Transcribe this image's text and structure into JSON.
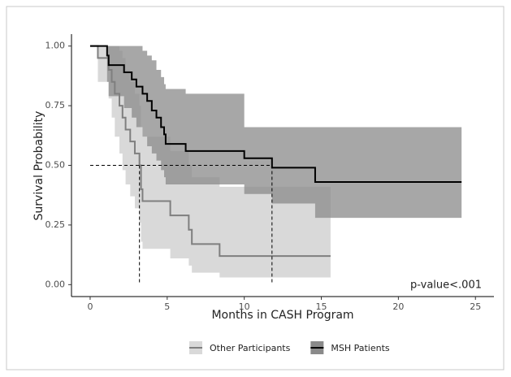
{
  "chart_data": {
    "type": "km",
    "x_label": "Months in CASH Program",
    "y_label": "Survival Probability",
    "annotation": "p-value<.001",
    "xlim": [
      -1.21,
      26.2
    ],
    "ylim": [
      -0.05,
      1.05
    ],
    "xticks": [
      0,
      5,
      10,
      15,
      20,
      25
    ],
    "yticks": [
      {
        "value": 0,
        "label": "0.00"
      },
      {
        "value": 0.25,
        "label": "0.25"
      },
      {
        "value": 0.5,
        "label": "0.50"
      },
      {
        "value": 0.75,
        "label": "0.75"
      },
      {
        "value": 1,
        "label": "1.00"
      }
    ],
    "median_lines": {
      "y": 0.5,
      "x": [
        3.2,
        11.8
      ]
    },
    "series": [
      {
        "name": "Other Participants",
        "color": "#7f7f7f",
        "band_color": "#d9d9d9",
        "times": [
          0,
          0.5,
          1.2,
          1.4,
          1.6,
          1.9,
          2.1,
          2.3,
          2.6,
          2.9,
          3.2,
          3.3,
          3.4,
          5.2,
          6.4,
          6.6,
          8.4
        ],
        "values": [
          1,
          0.95,
          0.9,
          0.85,
          0.8,
          0.75,
          0.7,
          0.65,
          0.6,
          0.55,
          0.5,
          0.4,
          0.35,
          0.29,
          0.23,
          0.17,
          0.12
        ],
        "upper": [
          1,
          1,
          1,
          1,
          1,
          0.98,
          0.95,
          0.9,
          0.85,
          0.8,
          0.75,
          0.66,
          0.62,
          0.56,
          0.5,
          0.45,
          0.41
        ],
        "lower": [
          1,
          0.85,
          0.78,
          0.7,
          0.62,
          0.55,
          0.48,
          0.42,
          0.37,
          0.32,
          0.26,
          0.18,
          0.15,
          0.11,
          0.08,
          0.05,
          0.03
        ],
        "x_end": 15.6
      },
      {
        "name": "MSH Patients",
        "color": "#000000",
        "band_color": "#8a8a8a",
        "times": [
          0,
          1.1,
          1.2,
          2.2,
          2.7,
          3.0,
          3.4,
          3.7,
          4.0,
          4.3,
          4.6,
          4.8,
          4.9,
          6.2,
          10.0,
          11.8,
          14.6
        ],
        "values": [
          1,
          0.96,
          0.92,
          0.89,
          0.86,
          0.83,
          0.8,
          0.77,
          0.73,
          0.7,
          0.66,
          0.63,
          0.59,
          0.56,
          0.53,
          0.49,
          0.43
        ],
        "upper": [
          1,
          1,
          1,
          1,
          1,
          1,
          0.98,
          0.96,
          0.94,
          0.9,
          0.87,
          0.84,
          0.82,
          0.8,
          0.66,
          0.66,
          0.66
        ],
        "lower": [
          1,
          0.85,
          0.79,
          0.74,
          0.7,
          0.66,
          0.62,
          0.58,
          0.55,
          0.52,
          0.48,
          0.45,
          0.42,
          0.42,
          0.38,
          0.34,
          0.28
        ],
        "x_end": 24.1
      }
    ]
  }
}
